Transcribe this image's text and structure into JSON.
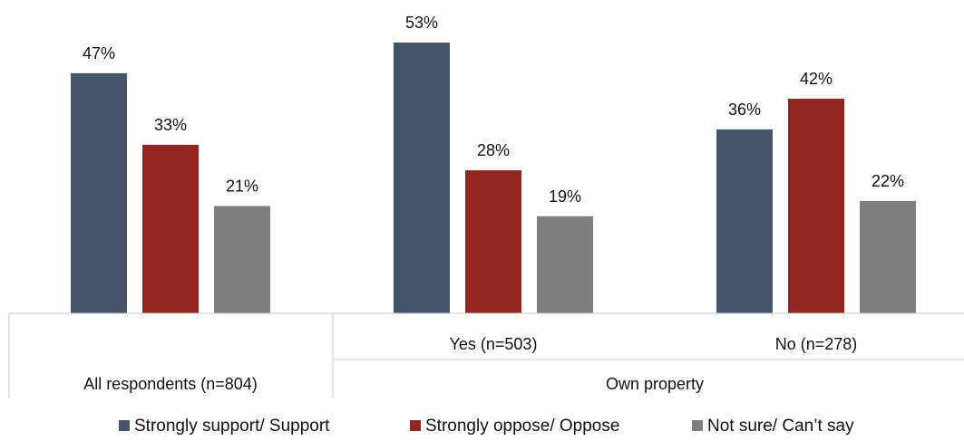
{
  "chart_data": {
    "type": "bar",
    "x_groups": [
      {
        "label": "All respondents (n=804)",
        "subcategories": [
          ""
        ]
      },
      {
        "label": "Own property",
        "subcategories": [
          "Yes (n=503)",
          "No (n=278)"
        ]
      }
    ],
    "categories": [
      "All respondents (n=804)",
      "Yes (n=503)",
      "No (n=278)"
    ],
    "series": [
      {
        "name": "Strongly support/ Support",
        "color": "#44546a",
        "values": [
          47,
          53,
          36
        ]
      },
      {
        "name": "Strongly oppose/ Oppose",
        "color": "#922722",
        "values": [
          33,
          28,
          42
        ]
      },
      {
        "name": "Not sure/ Can’t say",
        "color": "#7f7f7f",
        "values": [
          21,
          19,
          22
        ]
      }
    ],
    "value_suffix": "%",
    "ylim": [
      0,
      53
    ],
    "grid": false,
    "legend_position": "bottom"
  }
}
